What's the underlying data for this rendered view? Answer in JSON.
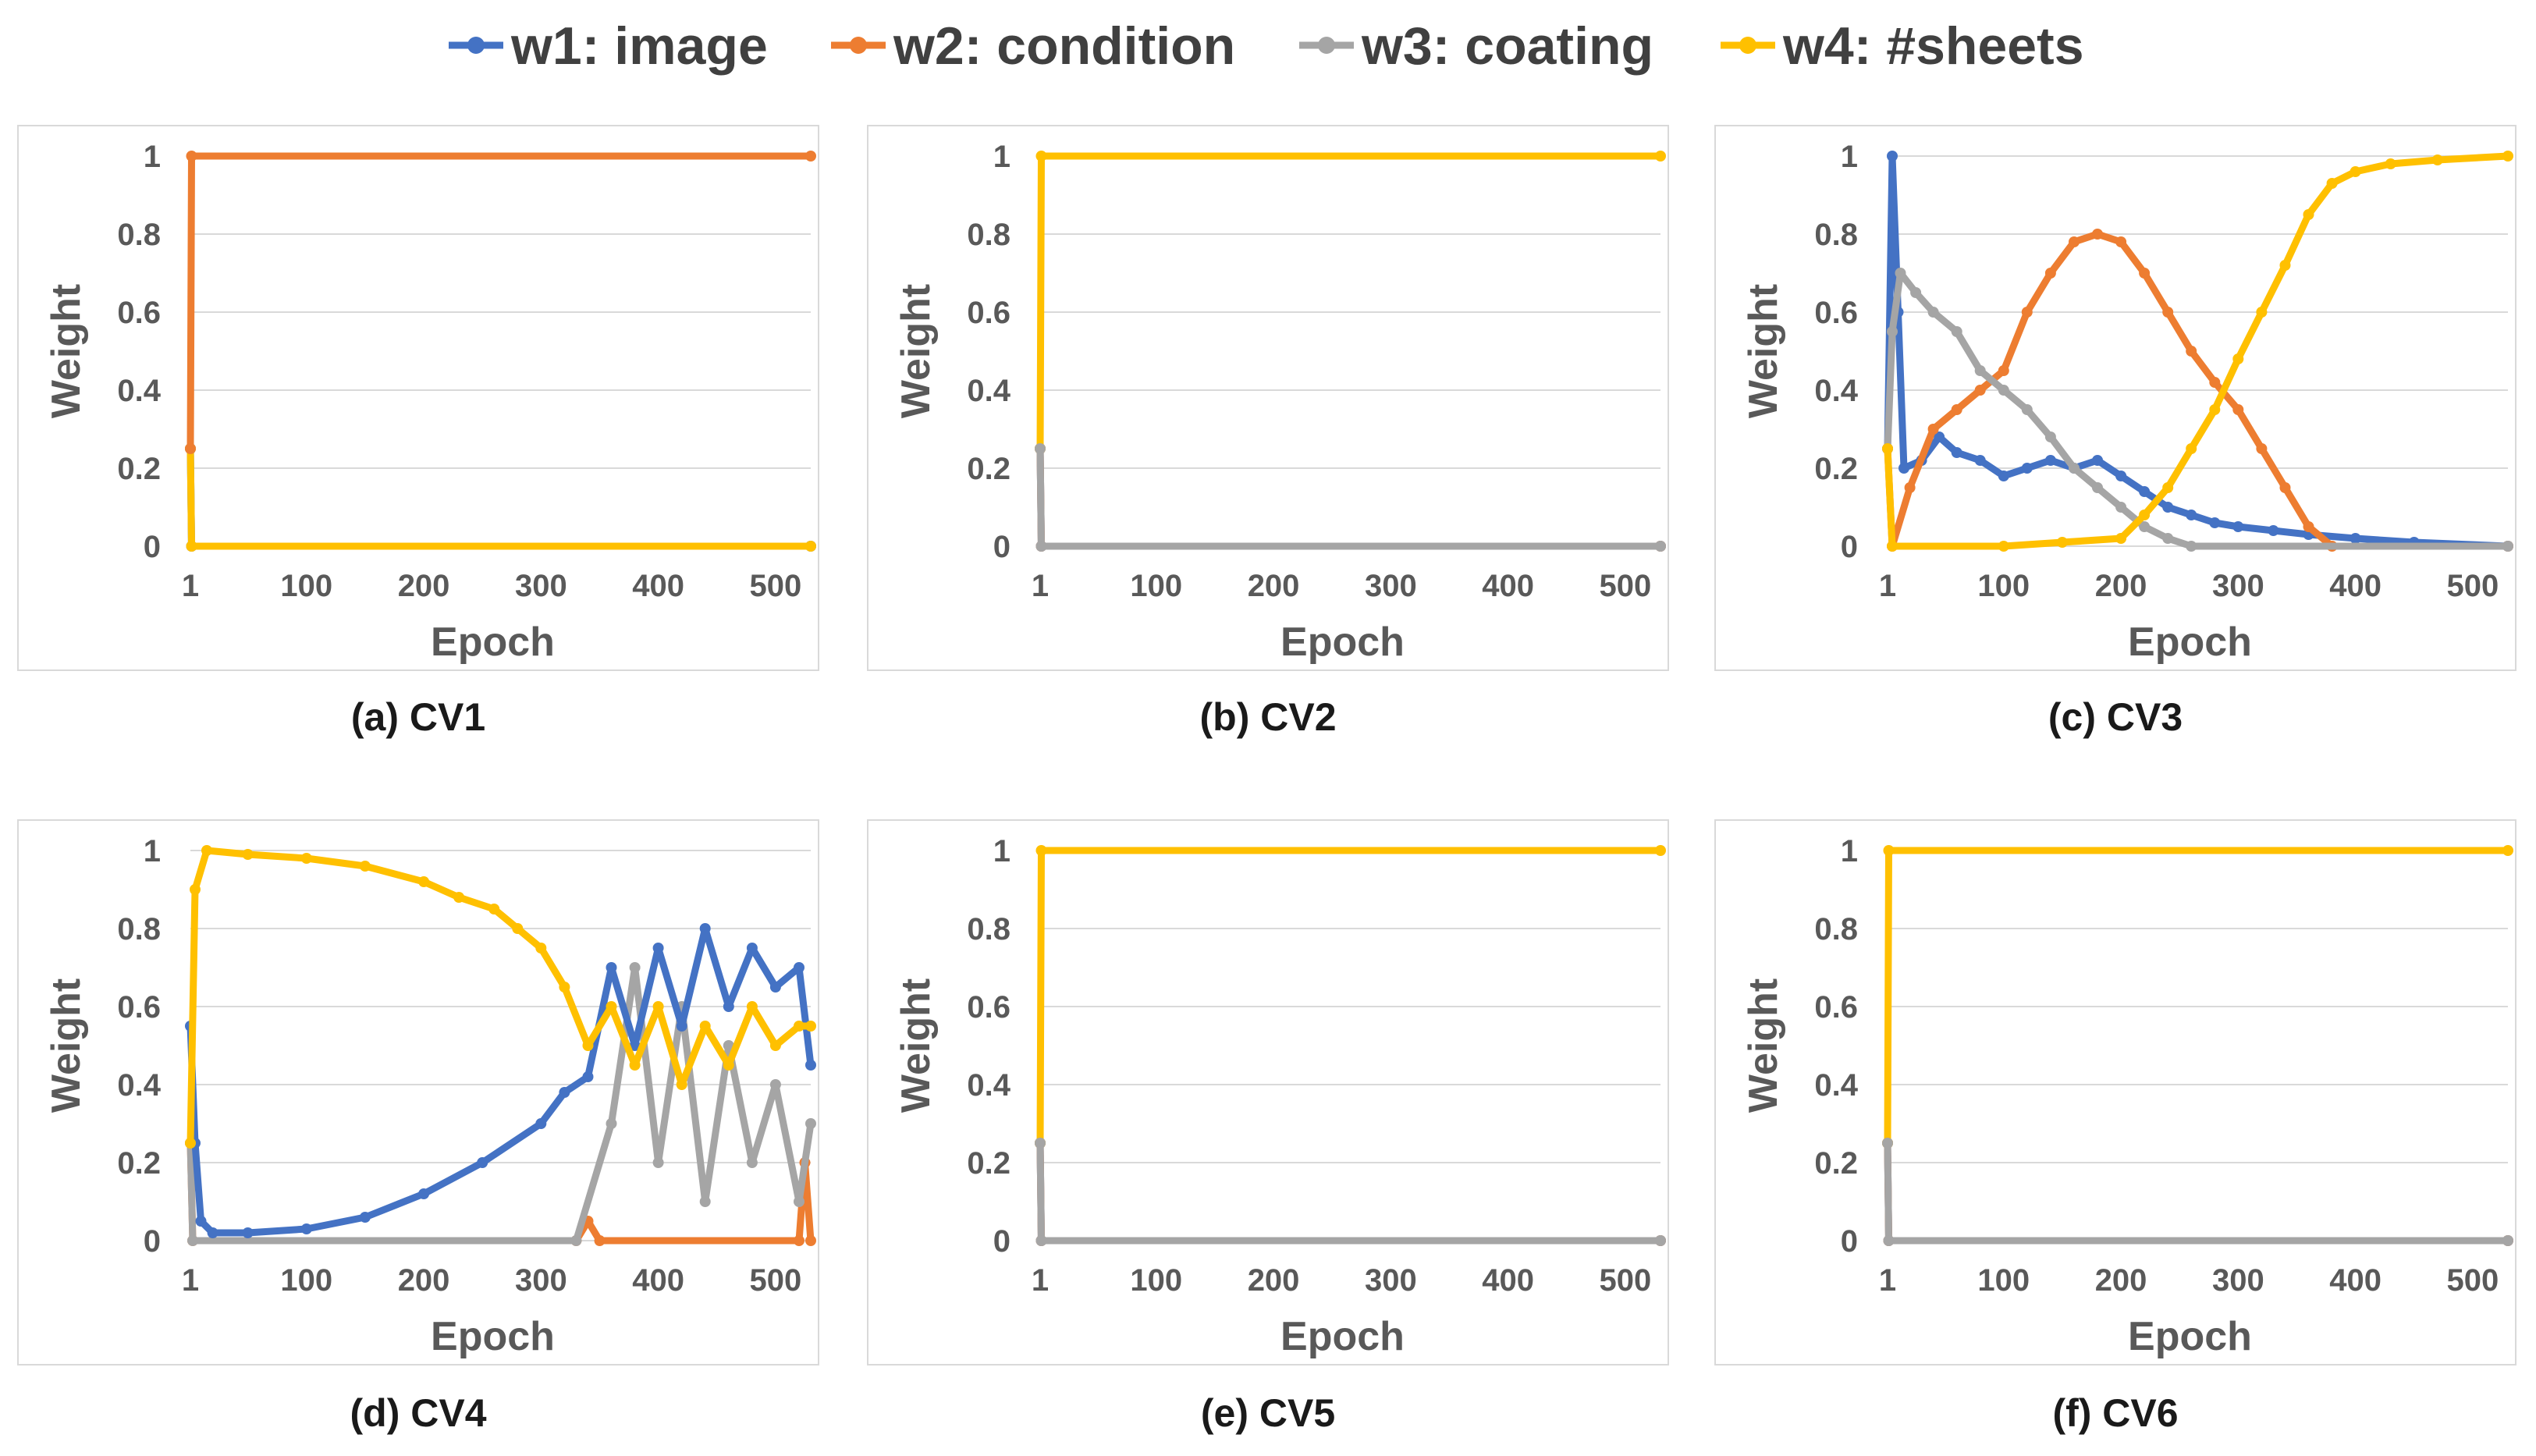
{
  "legend": [
    {
      "key": "w1",
      "label": "w1: image",
      "color": "#4472c4"
    },
    {
      "key": "w2",
      "label": "w2: condition",
      "color": "#ed7d31"
    },
    {
      "key": "w3",
      "label": "w3: coating",
      "color": "#a5a5a5"
    },
    {
      "key": "w4",
      "label": "w4: #sheets",
      "color": "#ffc000"
    }
  ],
  "chart_data": [
    {
      "type": "line",
      "caption": "(a) CV1",
      "xlabel": "Epoch",
      "ylabel": "Weight",
      "xlim": [
        1,
        530
      ],
      "ylim": [
        0,
        1
      ],
      "xticks": [
        "1",
        "100",
        "200",
        "300",
        "400",
        "500"
      ],
      "yticks": [
        "0",
        "0.2",
        "0.4",
        "0.6",
        "0.8",
        "1"
      ],
      "series": [
        {
          "name": "w1: image",
          "points": [
            [
              1,
              0.25
            ],
            [
              2,
              0
            ],
            [
              530,
              0
            ]
          ]
        },
        {
          "name": "w3: coating",
          "points": [
            [
              1,
              0.25
            ],
            [
              2,
              0
            ],
            [
              530,
              0
            ]
          ]
        },
        {
          "name": "w4: #sheets",
          "points": [
            [
              1,
              0.25
            ],
            [
              2,
              0
            ],
            [
              530,
              0
            ]
          ]
        },
        {
          "name": "w2: condition",
          "points": [
            [
              1,
              0.25
            ],
            [
              2,
              1
            ],
            [
              530,
              1
            ]
          ]
        }
      ]
    },
    {
      "type": "line",
      "caption": "(b) CV2",
      "xlabel": "Epoch",
      "ylabel": "Weight",
      "xlim": [
        1,
        530
      ],
      "ylim": [
        0,
        1
      ],
      "xticks": [
        "1",
        "100",
        "200",
        "300",
        "400",
        "500"
      ],
      "yticks": [
        "0",
        "0.2",
        "0.4",
        "0.6",
        "0.8",
        "1"
      ],
      "series": [
        {
          "name": "w1: image",
          "points": [
            [
              1,
              0.25
            ],
            [
              2,
              0
            ],
            [
              530,
              0
            ]
          ]
        },
        {
          "name": "w2: condition",
          "points": [
            [
              1,
              0.25
            ],
            [
              2,
              0
            ],
            [
              530,
              0
            ]
          ]
        },
        {
          "name": "w4: #sheets",
          "points": [
            [
              1,
              0.25
            ],
            [
              2,
              1
            ],
            [
              530,
              1
            ]
          ]
        },
        {
          "name": "w3: coating",
          "points": [
            [
              1,
              0.25
            ],
            [
              2,
              0
            ],
            [
              530,
              0
            ]
          ]
        }
      ]
    },
    {
      "type": "line",
      "caption": "(c) CV3",
      "xlabel": "Epoch",
      "ylabel": "Weight",
      "xlim": [
        1,
        530
      ],
      "ylim": [
        0,
        1
      ],
      "xticks": [
        "1",
        "100",
        "200",
        "300",
        "400",
        "500"
      ],
      "yticks": [
        "0",
        "0.2",
        "0.4",
        "0.6",
        "0.8",
        "1"
      ],
      "series": [
        {
          "name": "w1: image",
          "points": [
            [
              1,
              0.25
            ],
            [
              5,
              1.0
            ],
            [
              10,
              0.6
            ],
            [
              15,
              0.2
            ],
            [
              30,
              0.22
            ],
            [
              45,
              0.28
            ],
            [
              60,
              0.24
            ],
            [
              80,
              0.22
            ],
            [
              100,
              0.18
            ],
            [
              120,
              0.2
            ],
            [
              140,
              0.22
            ],
            [
              160,
              0.2
            ],
            [
              180,
              0.22
            ],
            [
              200,
              0.18
            ],
            [
              220,
              0.14
            ],
            [
              240,
              0.1
            ],
            [
              260,
              0.08
            ],
            [
              280,
              0.06
            ],
            [
              300,
              0.05
            ],
            [
              330,
              0.04
            ],
            [
              360,
              0.03
            ],
            [
              400,
              0.02
            ],
            [
              450,
              0.01
            ],
            [
              530,
              0.0
            ]
          ]
        },
        {
          "name": "w2: condition",
          "points": [
            [
              1,
              0.25
            ],
            [
              5,
              0.0
            ],
            [
              20,
              0.15
            ],
            [
              40,
              0.3
            ],
            [
              60,
              0.35
            ],
            [
              80,
              0.4
            ],
            [
              100,
              0.45
            ],
            [
              120,
              0.6
            ],
            [
              140,
              0.7
            ],
            [
              160,
              0.78
            ],
            [
              180,
              0.8
            ],
            [
              200,
              0.78
            ],
            [
              220,
              0.7
            ],
            [
              240,
              0.6
            ],
            [
              260,
              0.5
            ],
            [
              280,
              0.42
            ],
            [
              300,
              0.35
            ],
            [
              320,
              0.25
            ],
            [
              340,
              0.15
            ],
            [
              360,
              0.05
            ],
            [
              380,
              0.0
            ],
            [
              530,
              0.0
            ]
          ]
        },
        {
          "name": "w3: coating",
          "points": [
            [
              1,
              0.25
            ],
            [
              5,
              0.55
            ],
            [
              12,
              0.7
            ],
            [
              25,
              0.65
            ],
            [
              40,
              0.6
            ],
            [
              60,
              0.55
            ],
            [
              80,
              0.45
            ],
            [
              100,
              0.4
            ],
            [
              120,
              0.35
            ],
            [
              140,
              0.28
            ],
            [
              160,
              0.2
            ],
            [
              180,
              0.15
            ],
            [
              200,
              0.1
            ],
            [
              220,
              0.05
            ],
            [
              240,
              0.02
            ],
            [
              260,
              0.0
            ],
            [
              530,
              0.0
            ]
          ]
        },
        {
          "name": "w4: #sheets",
          "points": [
            [
              1,
              0.25
            ],
            [
              5,
              0.0
            ],
            [
              100,
              0.0
            ],
            [
              150,
              0.01
            ],
            [
              200,
              0.02
            ],
            [
              220,
              0.08
            ],
            [
              240,
              0.15
            ],
            [
              260,
              0.25
            ],
            [
              280,
              0.35
            ],
            [
              300,
              0.48
            ],
            [
              320,
              0.6
            ],
            [
              340,
              0.72
            ],
            [
              360,
              0.85
            ],
            [
              380,
              0.93
            ],
            [
              400,
              0.96
            ],
            [
              430,
              0.98
            ],
            [
              470,
              0.99
            ],
            [
              530,
              1.0
            ]
          ]
        }
      ]
    },
    {
      "type": "line",
      "caption": "(d) CV4",
      "xlabel": "Epoch",
      "ylabel": "Weight",
      "xlim": [
        1,
        530
      ],
      "ylim": [
        0,
        1
      ],
      "xticks": [
        "1",
        "100",
        "200",
        "300",
        "400",
        "500"
      ],
      "yticks": [
        "0",
        "0.2",
        "0.4",
        "0.6",
        "0.8",
        "1"
      ],
      "series": [
        {
          "name": "w2: condition",
          "points": [
            [
              1,
              0.25
            ],
            [
              3,
              0.0
            ],
            [
              330,
              0.0
            ],
            [
              340,
              0.05
            ],
            [
              350,
              0.0
            ],
            [
              520,
              0.0
            ],
            [
              525,
              0.2
            ],
            [
              530,
              0.0
            ]
          ]
        },
        {
          "name": "w3: coating",
          "points": [
            [
              1,
              0.25
            ],
            [
              3,
              0.0
            ],
            [
              330,
              0.0
            ],
            [
              360,
              0.3
            ],
            [
              380,
              0.7
            ],
            [
              400,
              0.2
            ],
            [
              420,
              0.6
            ],
            [
              440,
              0.1
            ],
            [
              460,
              0.5
            ],
            [
              480,
              0.2
            ],
            [
              500,
              0.4
            ],
            [
              520,
              0.1
            ],
            [
              530,
              0.3
            ]
          ]
        },
        {
          "name": "w1: image",
          "points": [
            [
              1,
              0.55
            ],
            [
              5,
              0.25
            ],
            [
              10,
              0.05
            ],
            [
              20,
              0.02
            ],
            [
              50,
              0.02
            ],
            [
              100,
              0.03
            ],
            [
              150,
              0.06
            ],
            [
              200,
              0.12
            ],
            [
              250,
              0.2
            ],
            [
              300,
              0.3
            ],
            [
              320,
              0.38
            ],
            [
              340,
              0.42
            ],
            [
              360,
              0.7
            ],
            [
              380,
              0.5
            ],
            [
              400,
              0.75
            ],
            [
              420,
              0.55
            ],
            [
              440,
              0.8
            ],
            [
              460,
              0.6
            ],
            [
              480,
              0.75
            ],
            [
              500,
              0.65
            ],
            [
              520,
              0.7
            ],
            [
              530,
              0.45
            ]
          ]
        },
        {
          "name": "w4: #sheets",
          "points": [
            [
              1,
              0.25
            ],
            [
              5,
              0.9
            ],
            [
              15,
              1.0
            ],
            [
              50,
              0.99
            ],
            [
              100,
              0.98
            ],
            [
              150,
              0.96
            ],
            [
              200,
              0.92
            ],
            [
              230,
              0.88
            ],
            [
              260,
              0.85
            ],
            [
              280,
              0.8
            ],
            [
              300,
              0.75
            ],
            [
              320,
              0.65
            ],
            [
              340,
              0.5
            ],
            [
              360,
              0.6
            ],
            [
              380,
              0.45
            ],
            [
              400,
              0.6
            ],
            [
              420,
              0.4
            ],
            [
              440,
              0.55
            ],
            [
              460,
              0.45
            ],
            [
              480,
              0.6
            ],
            [
              500,
              0.5
            ],
            [
              520,
              0.55
            ],
            [
              530,
              0.55
            ]
          ]
        }
      ]
    },
    {
      "type": "line",
      "caption": "(e) CV5",
      "xlabel": "Epoch",
      "ylabel": "Weight",
      "xlim": [
        1,
        530
      ],
      "ylim": [
        0,
        1
      ],
      "xticks": [
        "1",
        "100",
        "200",
        "300",
        "400",
        "500"
      ],
      "yticks": [
        "0",
        "0.2",
        "0.4",
        "0.6",
        "0.8",
        "1"
      ],
      "series": [
        {
          "name": "w1: image",
          "points": [
            [
              1,
              0.25
            ],
            [
              2,
              0
            ],
            [
              530,
              0
            ]
          ]
        },
        {
          "name": "w2: condition",
          "points": [
            [
              1,
              0.25
            ],
            [
              2,
              0
            ],
            [
              530,
              0
            ]
          ]
        },
        {
          "name": "w4: #sheets",
          "points": [
            [
              1,
              0.25
            ],
            [
              2,
              1
            ],
            [
              530,
              1
            ]
          ]
        },
        {
          "name": "w3: coating",
          "points": [
            [
              1,
              0.25
            ],
            [
              2,
              0
            ],
            [
              530,
              0
            ]
          ]
        }
      ]
    },
    {
      "type": "line",
      "caption": "(f) CV6",
      "xlabel": "Epoch",
      "ylabel": "Weight",
      "xlim": [
        1,
        530
      ],
      "ylim": [
        0,
        1
      ],
      "xticks": [
        "1",
        "100",
        "200",
        "300",
        "400",
        "500"
      ],
      "yticks": [
        "0",
        "0.2",
        "0.4",
        "0.6",
        "0.8",
        "1"
      ],
      "series": [
        {
          "name": "w1: image",
          "points": [
            [
              1,
              0.25
            ],
            [
              2,
              0
            ],
            [
              530,
              0
            ]
          ]
        },
        {
          "name": "w2: condition",
          "points": [
            [
              1,
              0.25
            ],
            [
              2,
              0
            ],
            [
              530,
              0
            ]
          ]
        },
        {
          "name": "w4: #sheets",
          "points": [
            [
              1,
              0.25
            ],
            [
              2,
              1
            ],
            [
              530,
              1
            ]
          ]
        },
        {
          "name": "w3: coating",
          "points": [
            [
              1,
              0.25
            ],
            [
              2,
              0
            ],
            [
              530,
              0
            ]
          ]
        }
      ]
    }
  ]
}
